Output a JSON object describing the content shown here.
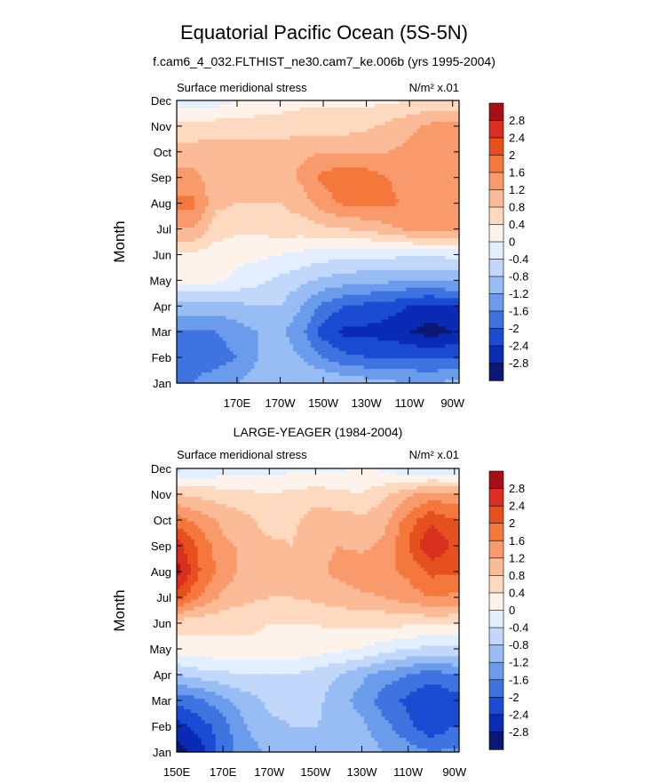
{
  "figure": {
    "title": "Equatorial Pacific Ocean (5S-5N)",
    "subtitle": "f.cam6_4_032.FLTHIST_ne30.cam7_ke.006b (yrs 1995-2004)"
  },
  "colorbar": {
    "labels": [
      "2.8",
      "2.4",
      "2",
      "1.6",
      "1.2",
      "0.8",
      "0.4",
      "0",
      "-0.4",
      "-0.8",
      "-1.2",
      "-1.6",
      "-2",
      "-2.4",
      "-2.8"
    ],
    "colors": [
      "#a50f15",
      "#d7301f",
      "#e6501e",
      "#f4773c",
      "#f89a6b",
      "#fbbb97",
      "#fdd9c0",
      "#fdf3ea",
      "#e3efff",
      "#c1d8fb",
      "#98bdf5",
      "#6b9cec",
      "#3f73e0",
      "#1b4ad3",
      "#0a2bb6",
      "#081873"
    ]
  },
  "chart_data": [
    {
      "type": "heatmap",
      "panel_title": "",
      "left_label": "Surface meridional stress",
      "right_label": "N/m² x.01",
      "ylabel": "Month",
      "y_ticks": [
        "Jan",
        "Feb",
        "Mar",
        "Apr",
        "May",
        "Jun",
        "Jul",
        "Aug",
        "Sep",
        "Oct",
        "Nov",
        "Dec"
      ],
      "x_ticks": [
        "170E",
        "170W",
        "150W",
        "130W",
        "110W",
        "90W"
      ],
      "x_tick_lons": [
        170,
        190,
        210,
        230,
        250,
        270
      ],
      "xlim": [
        142,
        273
      ],
      "x_cols": [
        142,
        150,
        160,
        170,
        180,
        190,
        200,
        210,
        220,
        230,
        240,
        250,
        260,
        270,
        273
      ],
      "grid": [
        [
          -1.6,
          -1.6,
          -1.4,
          -1.2,
          -1.0,
          -0.8,
          -0.8,
          -0.8,
          -0.9,
          -1.0,
          -1.1,
          -1.2,
          -1.2,
          -1.1,
          -1.1
        ],
        [
          -1.7,
          -1.7,
          -1.8,
          -1.6,
          -1.2,
          -1.0,
          -1.2,
          -1.6,
          -1.9,
          -2.0,
          -2.0,
          -2.0,
          -2.1,
          -2.0,
          -2.0
        ],
        [
          -1.6,
          -1.6,
          -1.6,
          -1.4,
          -1.2,
          -1.1,
          -1.5,
          -2.2,
          -2.5,
          -2.5,
          -2.6,
          -2.8,
          -3.0,
          -2.8,
          -2.8
        ],
        [
          -1.0,
          -1.0,
          -1.0,
          -0.9,
          -0.8,
          -0.8,
          -1.2,
          -1.7,
          -2.0,
          -2.1,
          -2.2,
          -2.4,
          -2.5,
          -2.4,
          -2.4
        ],
        [
          0.1,
          0.1,
          0.1,
          -0.1,
          -0.3,
          -0.5,
          -0.7,
          -0.9,
          -1.0,
          -1.1,
          -1.1,
          -1.2,
          -1.2,
          -1.1,
          -1.1
        ],
        [
          0.3,
          0.3,
          0.2,
          0.1,
          0.1,
          0.0,
          -0.1,
          -0.2,
          -0.3,
          -0.3,
          -0.3,
          -0.3,
          -0.3,
          -0.3,
          -0.3
        ],
        [
          1.2,
          1.2,
          0.6,
          0.5,
          0.5,
          0.6,
          0.6,
          0.7,
          0.8,
          0.9,
          1.1,
          1.3,
          1.4,
          1.4,
          1.4
        ],
        [
          1.7,
          1.7,
          0.9,
          0.8,
          0.8,
          0.8,
          1.0,
          1.4,
          1.7,
          1.7,
          1.7,
          1.5,
          1.4,
          1.3,
          1.3
        ],
        [
          1.3,
          1.3,
          1.0,
          1.0,
          1.0,
          1.0,
          1.3,
          1.7,
          1.9,
          1.8,
          1.6,
          1.4,
          1.3,
          1.3,
          1.3
        ],
        [
          1.0,
          1.0,
          1.0,
          1.0,
          1.0,
          1.0,
          1.1,
          1.2,
          1.2,
          1.2,
          1.2,
          1.3,
          1.4,
          1.4,
          1.4
        ],
        [
          0.5,
          0.5,
          0.6,
          0.6,
          0.6,
          0.6,
          0.6,
          0.6,
          0.6,
          0.7,
          0.9,
          1.1,
          1.3,
          1.3,
          1.3
        ],
        [
          -0.2,
          -0.2,
          -0.2,
          0.0,
          0.1,
          0.2,
          0.3,
          0.3,
          0.3,
          0.3,
          0.3,
          0.4,
          0.5,
          0.5,
          0.5
        ]
      ]
    },
    {
      "type": "heatmap",
      "panel_title": "LARGE-YEAGER (1984-2004)",
      "left_label": "Surface meridional stress",
      "right_label": "N/m² x.01",
      "ylabel": "Month",
      "y_ticks": [
        "Jan",
        "Feb",
        "Mar",
        "Apr",
        "May",
        "Jun",
        "Jul",
        "Aug",
        "Sep",
        "Oct",
        "Nov",
        "Dec"
      ],
      "x_ticks": [
        "150E",
        "170E",
        "170W",
        "150W",
        "130W",
        "110W",
        "90W"
      ],
      "x_tick_lons": [
        150,
        170,
        190,
        210,
        230,
        250,
        270
      ],
      "xlim": [
        150,
        272
      ],
      "x_cols": [
        150,
        160,
        170,
        180,
        190,
        200,
        210,
        220,
        230,
        240,
        250,
        260,
        270,
        272
      ],
      "grid": [
        [
          -3.0,
          -2.6,
          -1.8,
          -1.4,
          -1.1,
          -1.0,
          -0.9,
          -0.9,
          -1.0,
          -1.2,
          -1.4,
          -1.6,
          -1.5,
          -1.5
        ],
        [
          -2.6,
          -2.2,
          -1.8,
          -1.2,
          -0.9,
          -0.8,
          -0.8,
          -0.9,
          -1.1,
          -1.5,
          -1.9,
          -2.3,
          -2.0,
          -2.0
        ],
        [
          -1.9,
          -1.7,
          -1.3,
          -1.0,
          -0.7,
          -0.6,
          -0.7,
          -1.0,
          -1.4,
          -1.8,
          -2.1,
          -2.4,
          -2.2,
          -2.2
        ],
        [
          -0.8,
          -0.6,
          -0.5,
          -0.4,
          -0.4,
          -0.4,
          -0.6,
          -0.8,
          -1.1,
          -1.4,
          -1.6,
          -1.8,
          -1.6,
          -1.6
        ],
        [
          0.2,
          0.3,
          0.3,
          0.3,
          0.3,
          0.3,
          0.2,
          0.1,
          0.0,
          -0.2,
          -0.4,
          -0.5,
          -0.5,
          -0.5
        ],
        [
          0.6,
          0.5,
          0.5,
          0.5,
          0.4,
          0.4,
          0.4,
          0.5,
          0.5,
          0.5,
          0.5,
          0.5,
          0.5,
          0.5
        ],
        [
          2.2,
          1.6,
          1.1,
          0.9,
          0.8,
          0.8,
          0.9,
          1.0,
          1.1,
          1.2,
          1.4,
          1.6,
          1.5,
          1.5
        ],
        [
          3.0,
          2.0,
          1.4,
          1.1,
          0.9,
          0.9,
          1.1,
          1.3,
          1.5,
          1.5,
          1.7,
          2.1,
          2.1,
          2.1
        ],
        [
          2.6,
          1.9,
          1.3,
          1.1,
          0.9,
          0.8,
          1.1,
          1.2,
          1.1,
          1.3,
          2.0,
          2.8,
          2.3,
          2.3
        ],
        [
          1.8,
          1.4,
          1.1,
          0.9,
          0.6,
          0.7,
          1.0,
          1.0,
          0.9,
          1.1,
          1.8,
          2.3,
          2.0,
          2.0
        ],
        [
          0.8,
          0.7,
          0.6,
          0.5,
          0.4,
          0.5,
          0.6,
          0.5,
          0.4,
          0.7,
          1.1,
          1.4,
          1.3,
          1.3
        ],
        [
          -0.5,
          -0.4,
          -0.3,
          -0.2,
          -0.2,
          -0.1,
          -0.1,
          -0.1,
          0.1,
          -0.1,
          -0.4,
          -0.5,
          -0.5,
          -0.5
        ]
      ]
    }
  ]
}
